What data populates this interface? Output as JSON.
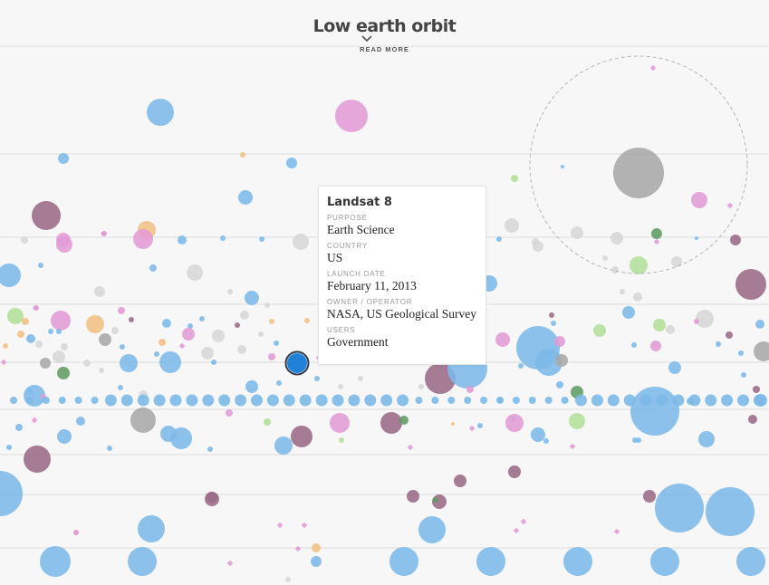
{
  "header": {
    "title": "Low earth orbit",
    "read_more": "READ MORE"
  },
  "tooltip": {
    "name": "Landsat 8",
    "fields": [
      {
        "label": "PURPOSE",
        "value": "Earth Science"
      },
      {
        "label": "COUNTRY",
        "value": "US"
      },
      {
        "label": "LAUNCH DATE",
        "value": "February 11, 2013"
      },
      {
        "label": "OWNER / OPERATOR",
        "value": "NASA, US Geological Survey"
      },
      {
        "label": "USERS",
        "value": "Government"
      }
    ]
  },
  "colors": {
    "background": "#f7f7f7",
    "orbit_line": "#dcdcdc",
    "government": "#7cb9e8",
    "highlight": "#1f82d8",
    "military": "#e39bd6",
    "commercial": "#a8a8a8",
    "civil": "#9a6b86",
    "mixed_orange": "#f2c084",
    "mixed_green": "#b4e09b",
    "dark_green": "#5e9d62",
    "light_gray": "#d7d7d7"
  },
  "chart_data": {
    "type": "scatter",
    "title": "Low earth orbit",
    "encoding": "each circle is one satellite; circle size = satellite mass; color = user category",
    "selected_satellite": "Landsat 8"
  }
}
